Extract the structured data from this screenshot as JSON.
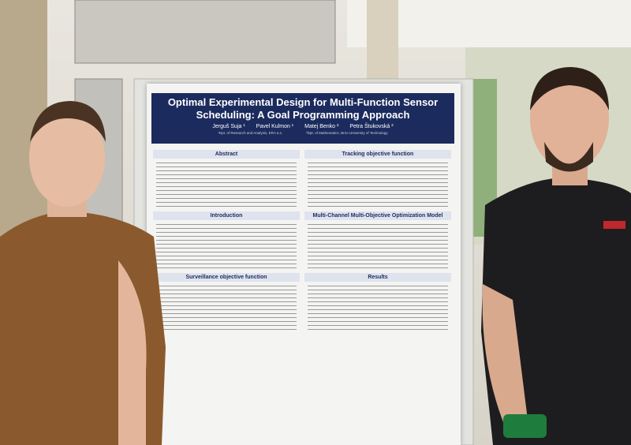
{
  "poster": {
    "title": "Optimal Experimental Design for Multi-Function Sensor Scheduling: A Goal Programming Approach",
    "authors": [
      "Jerguš Suja ¹",
      "Pavel Kulmon ¹",
      "Matej Benko ²",
      "Petra Štukovská ²"
    ],
    "affiliations": [
      "¹Dpt. of Research and Analysis, ERA a.s.",
      "²Dpt. of Mathematics, Brno University of Technology"
    ],
    "left_sections": [
      "Abstract",
      "Introduction",
      "Surveillance objective function"
    ],
    "right_sections": [
      "Tracking objective function",
      "Multi-Channel Multi-Objective Optimization Model",
      "Results"
    ]
  }
}
